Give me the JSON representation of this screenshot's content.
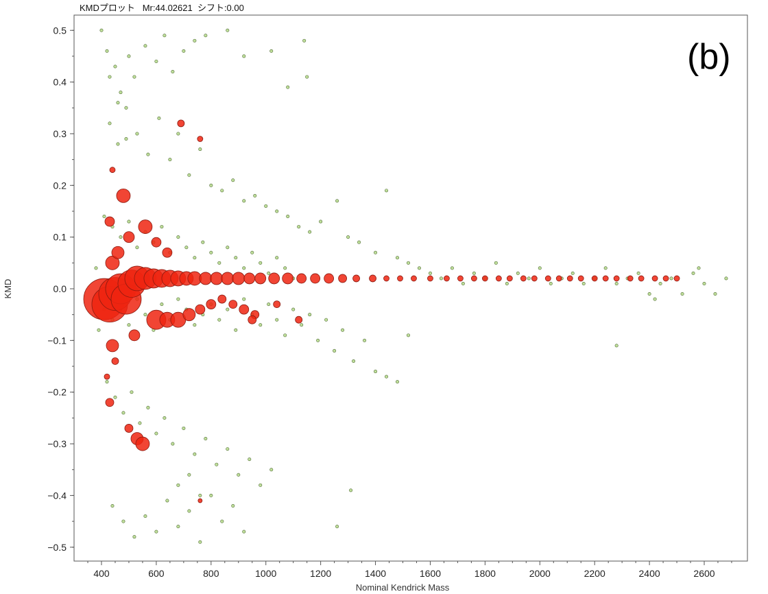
{
  "window": {
    "title": "KMDプロット   Mr:44.02621  シフト:0.00"
  },
  "panel_label": "(b)",
  "colors": {
    "minor_fill": "#b5d98a",
    "minor_stroke": "#4e6a33",
    "major_fill": "#ee2410",
    "major_stroke": "#8a1a10",
    "frame": "#555555"
  },
  "chart_data": {
    "type": "scatter",
    "title": "",
    "xlabel": "Nominal Kendrick Mass",
    "ylabel": "KMD",
    "xlim": [
      340,
      2700
    ],
    "ylim": [
      -0.52,
      0.52
    ],
    "xticks": [
      400,
      600,
      800,
      1000,
      1200,
      1400,
      1600,
      1800,
      2000,
      2200,
      2400,
      2600
    ],
    "yticks": [
      -0.5,
      -0.4,
      -0.3,
      -0.2,
      -0.1,
      0.0,
      0.1,
      0.2,
      0.3,
      0.4,
      0.5
    ],
    "ytick_labels": [
      "−0.5",
      "−0.4",
      "−0.3",
      "−0.2",
      "−0.1",
      "0.0",
      "0.1",
      "0.2",
      "0.3",
      "0.4",
      "0.5"
    ],
    "grid": false,
    "legend": "none",
    "series": [
      {
        "role": "minor",
        "points": [
          [
            420,
            0.46
          ],
          [
            450,
            0.43
          ],
          [
            470,
            0.38
          ],
          [
            500,
            0.45
          ],
          [
            520,
            0.41
          ],
          [
            560,
            0.47
          ],
          [
            600,
            0.44
          ],
          [
            630,
            0.49
          ],
          [
            660,
            0.42
          ],
          [
            700,
            0.46
          ],
          [
            740,
            0.48
          ],
          [
            780,
            0.49
          ],
          [
            430,
            0.32
          ],
          [
            460,
            0.28
          ],
          [
            490,
            0.35
          ],
          [
            530,
            0.3
          ],
          [
            570,
            0.26
          ],
          [
            610,
            0.33
          ],
          [
            650,
            0.25
          ],
          [
            680,
            0.3
          ],
          [
            720,
            0.22
          ],
          [
            760,
            0.27
          ],
          [
            800,
            0.2
          ],
          [
            840,
            0.19
          ],
          [
            880,
            0.21
          ],
          [
            920,
            0.17
          ],
          [
            960,
            0.18
          ],
          [
            1000,
            0.16
          ],
          [
            1040,
            0.15
          ],
          [
            1080,
            0.14
          ],
          [
            1120,
            0.12
          ],
          [
            1160,
            0.11
          ],
          [
            1200,
            0.13
          ],
          [
            1260,
            0.17
          ],
          [
            1300,
            0.1
          ],
          [
            1340,
            0.09
          ],
          [
            1400,
            0.07
          ],
          [
            1440,
            0.19
          ],
          [
            1480,
            0.06
          ],
          [
            1520,
            0.05
          ],
          [
            1560,
            0.04
          ],
          [
            1600,
            0.03
          ],
          [
            1640,
            0.02
          ],
          [
            1680,
            0.04
          ],
          [
            1720,
            0.01
          ],
          [
            1760,
            0.03
          ],
          [
            1800,
            0.02
          ],
          [
            1840,
            0.05
          ],
          [
            1880,
            0.01
          ],
          [
            1920,
            0.03
          ],
          [
            1960,
            0.02
          ],
          [
            2000,
            0.04
          ],
          [
            2040,
            0.01
          ],
          [
            2080,
            0.02
          ],
          [
            2120,
            0.03
          ],
          [
            2160,
            0.01
          ],
          [
            2200,
            0.02
          ],
          [
            2240,
            0.04
          ],
          [
            2280,
            0.01
          ],
          [
            2320,
            0.02
          ],
          [
            2360,
            0.03
          ],
          [
            2400,
            -0.01
          ],
          [
            2440,
            0.01
          ],
          [
            2480,
            0.02
          ],
          [
            2520,
            -0.01
          ],
          [
            2560,
            0.03
          ],
          [
            2600,
            0.01
          ],
          [
            2640,
            -0.01
          ],
          [
            2680,
            0.02
          ],
          [
            2580,
            0.04
          ],
          [
            2420,
            -0.02
          ],
          [
            2280,
            -0.11
          ],
          [
            410,
            0.14
          ],
          [
            440,
            0.12
          ],
          [
            470,
            0.1
          ],
          [
            500,
            0.13
          ],
          [
            530,
            0.08
          ],
          [
            560,
            0.11
          ],
          [
            590,
            0.09
          ],
          [
            620,
            0.12
          ],
          [
            650,
            0.07
          ],
          [
            680,
            0.1
          ],
          [
            710,
            0.08
          ],
          [
            740,
            0.06
          ],
          [
            770,
            0.09
          ],
          [
            800,
            0.07
          ],
          [
            830,
            0.05
          ],
          [
            860,
            0.08
          ],
          [
            890,
            0.06
          ],
          [
            920,
            0.04
          ],
          [
            950,
            0.07
          ],
          [
            980,
            0.05
          ],
          [
            1010,
            0.03
          ],
          [
            1040,
            0.06
          ],
          [
            1070,
            0.04
          ],
          [
            1100,
            0.02
          ],
          [
            410,
            -0.04
          ],
          [
            440,
            -0.06
          ],
          [
            470,
            -0.03
          ],
          [
            500,
            -0.07
          ],
          [
            530,
            -0.02
          ],
          [
            560,
            -0.05
          ],
          [
            590,
            -0.08
          ],
          [
            620,
            -0.03
          ],
          [
            650,
            -0.06
          ],
          [
            680,
            -0.02
          ],
          [
            710,
            -0.04
          ],
          [
            740,
            -0.07
          ],
          [
            770,
            -0.05
          ],
          [
            800,
            -0.03
          ],
          [
            830,
            -0.06
          ],
          [
            860,
            -0.04
          ],
          [
            890,
            -0.08
          ],
          [
            920,
            -0.02
          ],
          [
            950,
            -0.05
          ],
          [
            980,
            -0.07
          ],
          [
            1010,
            -0.03
          ],
          [
            1040,
            -0.06
          ],
          [
            1070,
            -0.09
          ],
          [
            1100,
            -0.04
          ],
          [
            1130,
            -0.07
          ],
          [
            1160,
            -0.05
          ],
          [
            1190,
            -0.1
          ],
          [
            1220,
            -0.06
          ],
          [
            1250,
            -0.12
          ],
          [
            1280,
            -0.08
          ],
          [
            1320,
            -0.14
          ],
          [
            1360,
            -0.1
          ],
          [
            1400,
            -0.16
          ],
          [
            1440,
            -0.17
          ],
          [
            1480,
            -0.18
          ],
          [
            1520,
            -0.09
          ],
          [
            420,
            -0.18
          ],
          [
            450,
            -0.21
          ],
          [
            480,
            -0.24
          ],
          [
            510,
            -0.2
          ],
          [
            540,
            -0.26
          ],
          [
            570,
            -0.23
          ],
          [
            600,
            -0.28
          ],
          [
            630,
            -0.25
          ],
          [
            660,
            -0.3
          ],
          [
            700,
            -0.27
          ],
          [
            740,
            -0.32
          ],
          [
            780,
            -0.29
          ],
          [
            820,
            -0.34
          ],
          [
            860,
            -0.31
          ],
          [
            900,
            -0.36
          ],
          [
            940,
            -0.33
          ],
          [
            980,
            -0.38
          ],
          [
            1020,
            -0.35
          ],
          [
            440,
            -0.42
          ],
          [
            480,
            -0.45
          ],
          [
            520,
            -0.48
          ],
          [
            560,
            -0.44
          ],
          [
            600,
            -0.47
          ],
          [
            640,
            -0.41
          ],
          [
            680,
            -0.46
          ],
          [
            720,
            -0.43
          ],
          [
            760,
            -0.49
          ],
          [
            800,
            -0.4
          ],
          [
            840,
            -0.45
          ],
          [
            880,
            -0.42
          ],
          [
            920,
            -0.47
          ],
          [
            680,
            -0.38
          ],
          [
            720,
            -0.36
          ],
          [
            760,
            -0.4
          ],
          [
            1310,
            -0.39
          ],
          [
            1260,
            -0.46
          ],
          [
            1140,
            0.48
          ],
          [
            1150,
            0.41
          ],
          [
            1080,
            0.39
          ],
          [
            1020,
            0.46
          ],
          [
            920,
            0.45
          ],
          [
            860,
            0.5
          ],
          [
            400,
            0.5
          ],
          [
            430,
            0.41
          ],
          [
            460,
            0.36
          ],
          [
            490,
            0.29
          ],
          [
            380,
            0.04
          ],
          [
            390,
            -0.08
          ]
        ],
        "sizes": []
      },
      {
        "role": "major",
        "points": [
          [
            410,
            -0.02
          ],
          [
            430,
            -0.03
          ],
          [
            450,
            -0.01
          ],
          [
            470,
            0.0
          ],
          [
            490,
            -0.02
          ],
          [
            510,
            0.01
          ],
          [
            530,
            0.02
          ],
          [
            560,
            0.02
          ],
          [
            590,
            0.02
          ],
          [
            620,
            0.02
          ],
          [
            650,
            0.02
          ],
          [
            680,
            0.02
          ],
          [
            710,
            0.02
          ],
          [
            740,
            0.02
          ],
          [
            780,
            0.02
          ],
          [
            820,
            0.02
          ],
          [
            860,
            0.02
          ],
          [
            900,
            0.02
          ],
          [
            940,
            0.02
          ],
          [
            980,
            0.02
          ],
          [
            1030,
            0.02
          ],
          [
            1080,
            0.02
          ],
          [
            1130,
            0.02
          ],
          [
            1180,
            0.02
          ],
          [
            1230,
            0.02
          ],
          [
            1280,
            0.02
          ],
          [
            1330,
            0.02
          ],
          [
            1390,
            0.02
          ],
          [
            1440,
            0.02
          ],
          [
            1490,
            0.02
          ],
          [
            1540,
            0.02
          ],
          [
            1600,
            0.02
          ],
          [
            1660,
            0.02
          ],
          [
            1710,
            0.02
          ],
          [
            1760,
            0.02
          ],
          [
            1800,
            0.02
          ],
          [
            1850,
            0.02
          ],
          [
            1890,
            0.02
          ],
          [
            1940,
            0.02
          ],
          [
            1980,
            0.02
          ],
          [
            2030,
            0.02
          ],
          [
            2070,
            0.02
          ],
          [
            2110,
            0.02
          ],
          [
            2150,
            0.02
          ],
          [
            2200,
            0.02
          ],
          [
            2240,
            0.02
          ],
          [
            2280,
            0.02
          ],
          [
            2330,
            0.02
          ],
          [
            2370,
            0.02
          ],
          [
            2420,
            0.02
          ],
          [
            2460,
            0.02
          ],
          [
            2500,
            0.02
          ],
          [
            480,
            0.18
          ],
          [
            440,
            0.23
          ],
          [
            690,
            0.32
          ],
          [
            760,
            0.29
          ],
          [
            440,
            0.05
          ],
          [
            460,
            0.07
          ],
          [
            500,
            0.1
          ],
          [
            560,
            0.12
          ],
          [
            600,
            0.09
          ],
          [
            640,
            0.07
          ],
          [
            430,
            0.13
          ],
          [
            600,
            -0.06
          ],
          [
            640,
            -0.06
          ],
          [
            680,
            -0.06
          ],
          [
            720,
            -0.05
          ],
          [
            760,
            -0.04
          ],
          [
            800,
            -0.03
          ],
          [
            840,
            -0.02
          ],
          [
            880,
            -0.03
          ],
          [
            920,
            -0.04
          ],
          [
            960,
            -0.05
          ],
          [
            520,
            -0.09
          ],
          [
            440,
            -0.11
          ],
          [
            450,
            -0.14
          ],
          [
            420,
            -0.17
          ],
          [
            430,
            -0.22
          ],
          [
            500,
            -0.27
          ],
          [
            530,
            -0.29
          ],
          [
            550,
            -0.3
          ],
          [
            760,
            -0.41
          ],
          [
            950,
            -0.06
          ],
          [
            1040,
            -0.03
          ],
          [
            1120,
            -0.06
          ]
        ],
        "sizes": [
          30,
          26,
          24,
          22,
          22,
          20,
          18,
          16,
          14,
          13,
          12,
          11,
          10,
          10,
          9,
          9,
          9,
          9,
          8,
          8,
          8,
          8,
          7,
          7,
          7,
          6,
          5,
          5,
          4,
          4,
          4,
          4,
          4,
          4,
          4,
          4,
          4,
          4,
          4,
          4,
          4,
          4,
          4,
          4,
          4,
          4,
          4,
          4,
          4,
          4,
          4,
          4,
          10,
          4,
          5,
          4,
          10,
          9,
          8,
          10,
          7,
          7,
          7,
          14,
          11,
          11,
          9,
          7,
          7,
          6,
          6,
          7,
          6,
          8,
          9,
          5,
          4,
          6,
          6,
          9,
          10,
          3,
          6,
          5,
          5
        ]
      }
    ]
  }
}
